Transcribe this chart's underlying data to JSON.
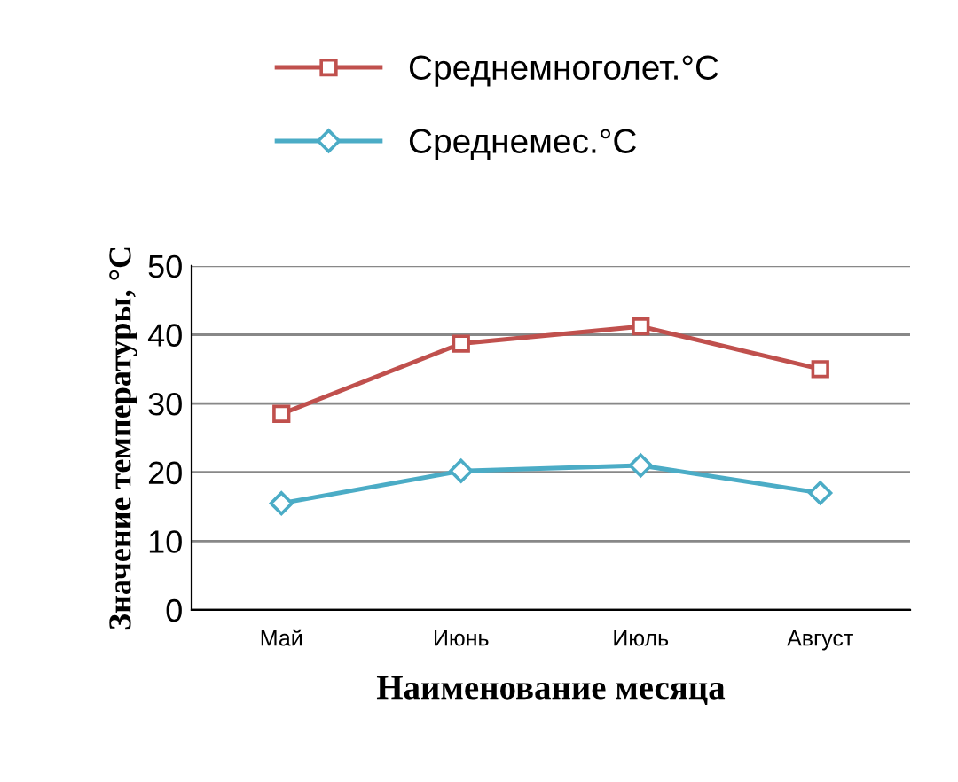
{
  "chart_data": {
    "type": "line",
    "xlabel": "Наименование месяца",
    "ylabel": "Значение температуры, °С",
    "categories": [
      "Май",
      "Июнь",
      "Июль",
      "Август"
    ],
    "series": [
      {
        "name": "Среднемноголет.°С",
        "color": "#c0504d",
        "marker": "square",
        "values": [
          28.5,
          38.7,
          41.2,
          35
        ]
      },
      {
        "name": "Среднемес.°С",
        "color": "#4bacc6",
        "marker": "diamond",
        "values": [
          15.5,
          20.2,
          21,
          17
        ]
      }
    ],
    "ylim": [
      0,
      50
    ],
    "yticks": [
      0,
      10,
      20,
      30,
      40,
      50
    ],
    "grid": "y",
    "legend": "top"
  }
}
